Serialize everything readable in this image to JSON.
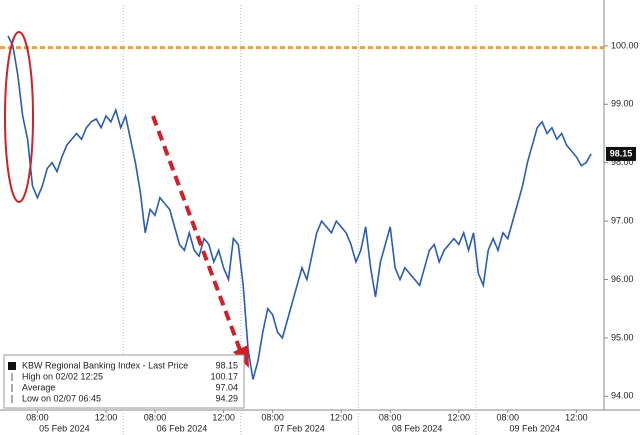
{
  "chart_data": {
    "type": "line",
    "categories": [
      null,
      null,
      null,
      null,
      null,
      null,
      "08:00",
      null,
      null,
      null,
      null,
      null,
      null,
      null,
      null,
      null,
      null,
      null,
      null,
      null,
      "12:00",
      null,
      null,
      null,
      null,
      null,
      null,
      null,
      null,
      null,
      "08:00",
      null,
      null,
      null,
      null,
      null,
      null,
      null,
      null,
      null,
      null,
      null,
      null,
      null,
      "12:00",
      null,
      null,
      null,
      null,
      null,
      null,
      null,
      null,
      null,
      "08:00",
      null,
      null,
      null,
      null,
      null,
      null,
      null,
      null,
      null,
      null,
      null,
      null,
      null,
      "12:00",
      null,
      null,
      null,
      null,
      null,
      null,
      null,
      null,
      null,
      "08:00",
      null,
      null,
      null,
      null,
      null,
      null,
      null,
      null,
      null,
      null,
      null,
      null,
      null,
      "12:00",
      null,
      null,
      null,
      null,
      null,
      null,
      null,
      null,
      null,
      "08:00",
      null,
      null,
      null,
      null,
      null,
      null,
      null,
      null,
      null,
      null,
      null,
      null,
      null,
      "12:00",
      null,
      null,
      null
    ],
    "x_groups": [
      "05 Feb 2024",
      "06 Feb 2024",
      "07 Feb 2024",
      "08 Feb 2024",
      "09 Feb 2024"
    ],
    "series": [
      {
        "name": "KBW Regional Banking Index - Last Price",
        "color": "#2a5db0",
        "values": [
          100.17,
          100.0,
          99.5,
          98.8,
          98.4,
          97.6,
          97.4,
          97.6,
          97.9,
          98.0,
          97.85,
          98.1,
          98.3,
          98.4,
          98.5,
          98.4,
          98.6,
          98.7,
          98.75,
          98.6,
          98.8,
          98.7,
          98.9,
          98.6,
          98.8,
          98.4,
          98.0,
          97.5,
          96.8,
          97.2,
          97.1,
          97.4,
          97.3,
          97.2,
          96.9,
          96.6,
          96.5,
          96.8,
          96.5,
          96.4,
          96.7,
          96.6,
          96.3,
          96.5,
          96.2,
          96.0,
          96.7,
          96.6,
          95.9,
          94.8,
          94.29,
          94.6,
          95.1,
          95.5,
          95.4,
          95.1,
          95.0,
          95.3,
          95.6,
          95.9,
          96.2,
          96.0,
          96.4,
          96.8,
          97.0,
          96.9,
          96.8,
          97.0,
          96.9,
          96.8,
          96.6,
          96.3,
          96.5,
          96.9,
          96.2,
          95.7,
          96.3,
          96.6,
          96.9,
          96.2,
          96.0,
          96.2,
          96.1,
          96.0,
          95.9,
          96.2,
          96.5,
          96.6,
          96.3,
          96.5,
          96.6,
          96.7,
          96.6,
          96.8,
          96.5,
          96.8,
          96.1,
          95.9,
          96.5,
          96.7,
          96.5,
          96.8,
          96.7,
          97.0,
          97.3,
          97.6,
          98.0,
          98.3,
          98.6,
          98.7,
          98.5,
          98.6,
          98.4,
          98.5,
          98.3,
          98.2,
          98.1,
          97.95,
          98.0,
          98.15
        ]
      }
    ],
    "reference_line": {
      "value": 99.97,
      "color": "#f0a030"
    },
    "ylim": [
      93.8,
      100.7
    ],
    "yticks": [
      {
        "value": 94,
        "label": "94.00"
      },
      {
        "value": 95,
        "label": "95.00"
      },
      {
        "value": 96,
        "label": "96.00"
      },
      {
        "value": 97,
        "label": "97.00"
      },
      {
        "value": 98,
        "label": "98.00"
      },
      {
        "value": 99,
        "label": "99.00"
      },
      {
        "value": 100,
        "label": "100.00"
      }
    ],
    "legend": {
      "items": [
        {
          "label": "KBW Regional Banking Index - Last Price",
          "value": 98.15
        },
        {
          "label": "High on 02/02 12:25",
          "value": 100.17
        },
        {
          "label": "Average",
          "value": 97.04
        },
        {
          "label": "Low on 02/07 06:45",
          "value": 94.29
        }
      ]
    }
  }
}
